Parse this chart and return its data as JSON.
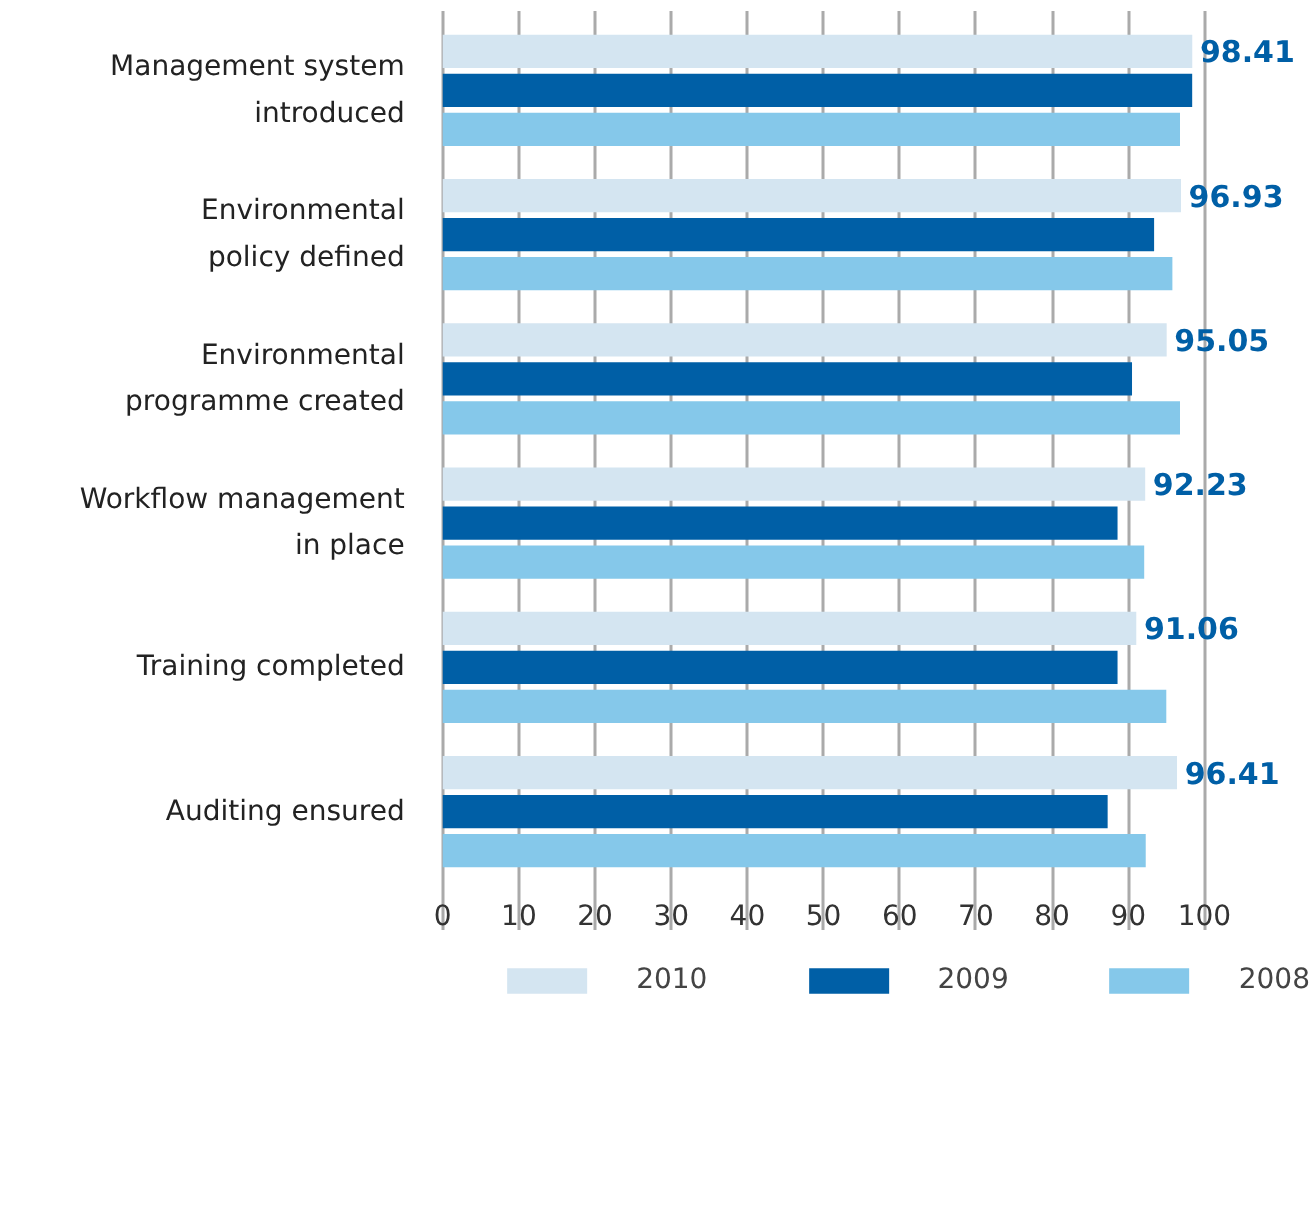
{
  "chart_data": {
    "type": "bar",
    "orientation": "horizontal",
    "categories": [
      "Management system\nintroduced",
      "Environmental\npolicy defined",
      "Environmental\nprogramme created",
      "Workflow management\nin place",
      "Training completed",
      "Auditing ensured"
    ],
    "series": [
      {
        "name": "2010",
        "color": "#d4e5f1",
        "values": [
          98.41,
          96.93,
          95.05,
          92.23,
          91.06,
          96.41
        ],
        "value_labels": [
          "98.41",
          "96.93",
          "95.05",
          "92.23",
          "91.06",
          "96.41"
        ]
      },
      {
        "name": "2009",
        "color": "#005fa6",
        "values": [
          98.4,
          93.4,
          90.5,
          88.6,
          88.6,
          87.3
        ]
      },
      {
        "name": "2008",
        "color": "#85c8ea",
        "values": [
          96.8,
          95.8,
          96.8,
          92.1,
          95.0,
          92.3
        ]
      }
    ],
    "xlim": [
      0,
      100
    ],
    "xticks": [
      0,
      10,
      20,
      30,
      40,
      50,
      60,
      70,
      80,
      90,
      100
    ],
    "grid": "x",
    "legend": "bottom"
  }
}
